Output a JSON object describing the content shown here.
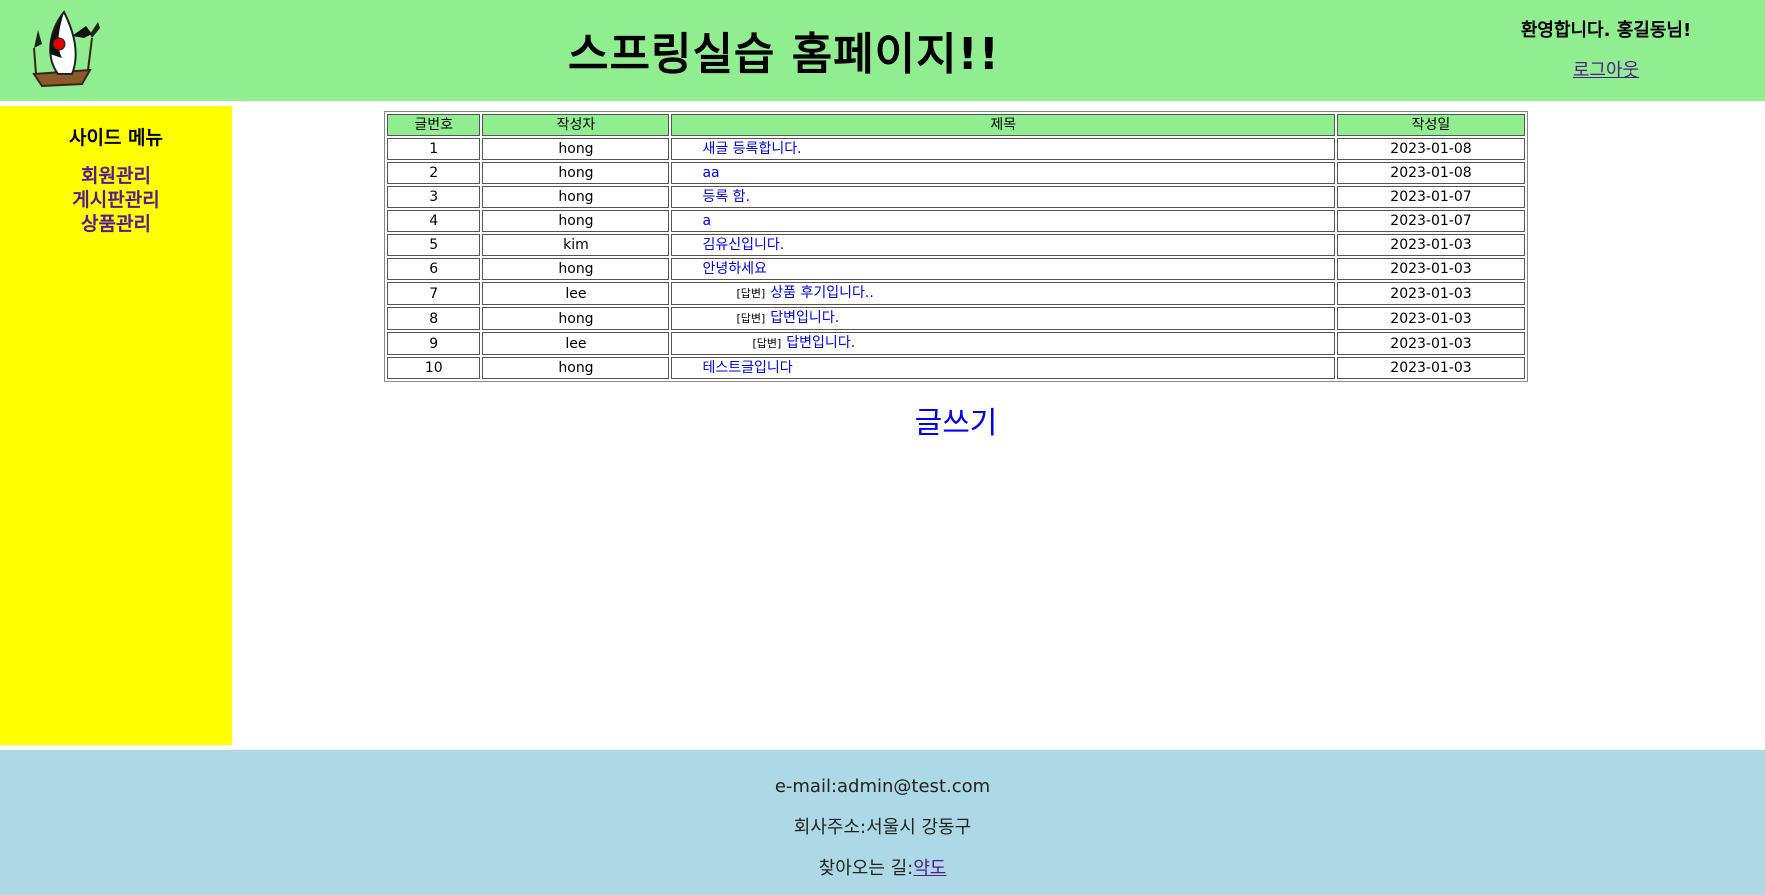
{
  "header": {
    "title": "스프링실습 홈페이지!!",
    "welcome": "환영합니다. 홍길동님!",
    "logout": "로그아웃",
    "logo_icon": "duke-mascot-icon"
  },
  "sidebar": {
    "title": "사이드 메뉴",
    "items": [
      {
        "label": "회원관리"
      },
      {
        "label": "게시판관리"
      },
      {
        "label": "상품관리"
      }
    ]
  },
  "board": {
    "columns": [
      "글번호",
      "작성자",
      "제목",
      "작성일"
    ],
    "reply_label": "[답변]",
    "rows": [
      {
        "no": "1",
        "writer": "hong",
        "title": "새글 등록합니다.",
        "date": "2023-01-08",
        "depth": 0
      },
      {
        "no": "2",
        "writer": "hong",
        "title": "aa",
        "date": "2023-01-08",
        "depth": 0
      },
      {
        "no": "3",
        "writer": "hong",
        "title": "등록 함.",
        "date": "2023-01-07",
        "depth": 0
      },
      {
        "no": "4",
        "writer": "hong",
        "title": "a",
        "date": "2023-01-07",
        "depth": 0
      },
      {
        "no": "5",
        "writer": "kim",
        "title": "김유신입니다.",
        "date": "2023-01-03",
        "depth": 0
      },
      {
        "no": "6",
        "writer": "hong",
        "title": "안녕하세요",
        "date": "2023-01-03",
        "depth": 0
      },
      {
        "no": "7",
        "writer": "lee",
        "title": "상품 후기입니다..",
        "date": "2023-01-03",
        "depth": 1
      },
      {
        "no": "8",
        "writer": "hong",
        "title": "답변입니다.",
        "date": "2023-01-03",
        "depth": 1
      },
      {
        "no": "9",
        "writer": "lee",
        "title": "답변입니다.",
        "date": "2023-01-03",
        "depth": 2
      },
      {
        "no": "10",
        "writer": "hong",
        "title": "테스트글입니다",
        "date": "2023-01-03",
        "depth": 0
      }
    ],
    "write_label": "글쓰기"
  },
  "footer": {
    "email": "e-mail:admin@test.com",
    "address": "회사주소:서울시 강동구",
    "directions_prefix": "찾아오는 길:",
    "directions_link": "약도"
  },
  "colors": {
    "header_bg": "#90ee90",
    "sidebar_bg": "#ffff00",
    "footer_bg": "#add8e6",
    "link": "#0000ee",
    "visited_link": "#551a8b"
  }
}
